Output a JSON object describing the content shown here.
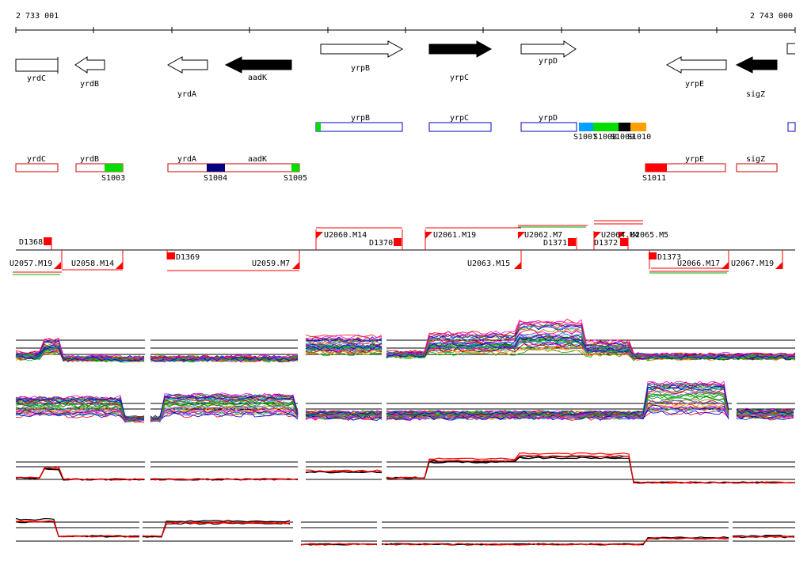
{
  "coordinates": {
    "start": "2 733 001",
    "end": "2 743 000"
  },
  "genes": [
    {
      "name": "yrdC",
      "strand": "none",
      "filled": false
    },
    {
      "name": "yrdB",
      "strand": "-",
      "filled": false
    },
    {
      "name": "yrdA",
      "strand": "-",
      "filled": false
    },
    {
      "name": "aadK",
      "strand": "-",
      "filled": true
    },
    {
      "name": "yrpB",
      "strand": "+",
      "filled": false
    },
    {
      "name": "yrpC",
      "strand": "+",
      "filled": true
    },
    {
      "name": "yrpD",
      "strand": "+",
      "filled": false
    },
    {
      "name": "yrpE",
      "strand": "-",
      "filled": false
    },
    {
      "name": "sigZ",
      "strand": "-",
      "filled": true
    }
  ],
  "forward_transcripts": [
    {
      "label": "yrpB"
    },
    {
      "label": "yrpC"
    },
    {
      "label": "yrpD"
    }
  ],
  "forward_sites": [
    "S1007",
    "S1008",
    "S1009",
    "S1010"
  ],
  "reverse_transcripts": [
    {
      "label": "yrdC"
    },
    {
      "label": "yrdB"
    },
    {
      "label": "yrdA"
    },
    {
      "label": "aadK"
    },
    {
      "label": "yrpE"
    },
    {
      "label": "sigZ"
    }
  ],
  "reverse_sites": [
    "S1003",
    "S1004",
    "S1005",
    "S1011"
  ],
  "segments_upper": [
    "D1368",
    "U2060.M14",
    "D1370",
    "U2061.M19",
    "U2062.M7",
    "D1371",
    "U2064.M4",
    "D1372",
    "U2065.M5"
  ],
  "segments_lower": [
    "U2057.M19",
    "U2058.M14",
    "D1369",
    "U2059.M7",
    "U2063.M15",
    "D1373",
    "U2066.M17",
    "U2067.M19"
  ],
  "colors": {
    "gene_outline": "#000000",
    "transcript_forward": "#0000cc",
    "transcript_reverse": "#cc0000",
    "segment": "#ff0000",
    "site_green": "#00dd00",
    "site_navy": "#000080",
    "site_red": "#ff0000",
    "site_sky": "#00a0ff",
    "site_black": "#000000",
    "site_orange": "#ffa000"
  }
}
